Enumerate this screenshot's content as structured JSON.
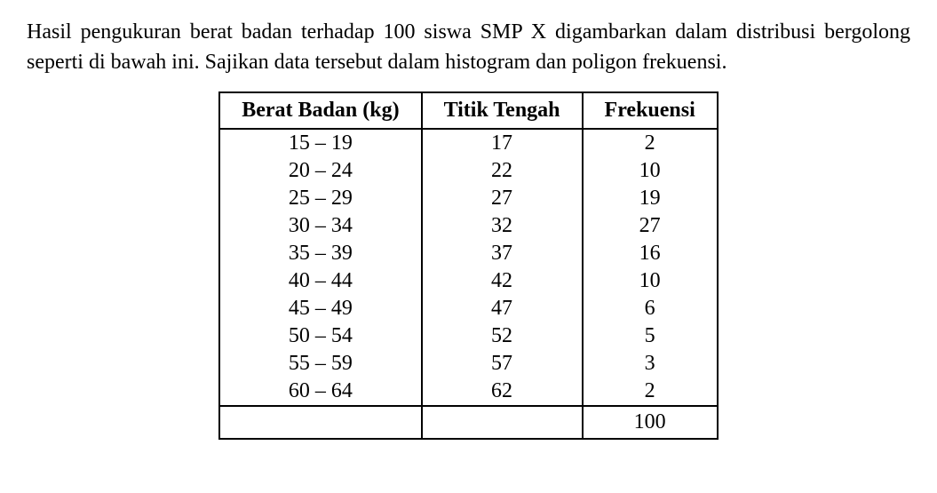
{
  "question": {
    "text": "Hasil pengukuran berat badan terhadap 100 siswa SMP X digambarkan dalam distribusi bergolong seperti di bawah ini. Sajikan data tersebut dalam histogram dan poligon frekuensi."
  },
  "table": {
    "headers": {
      "col1": "Berat Badan (kg)",
      "col2": "Titik Tengah",
      "col3": "Frekuensi"
    },
    "rows": [
      {
        "range": "15 – 19",
        "midpoint": "17",
        "frequency": "2"
      },
      {
        "range": "20 – 24",
        "midpoint": "22",
        "frequency": "10"
      },
      {
        "range": "25 – 29",
        "midpoint": "27",
        "frequency": "19"
      },
      {
        "range": "30 – 34",
        "midpoint": "32",
        "frequency": "27"
      },
      {
        "range": "35 – 39",
        "midpoint": "37",
        "frequency": "16"
      },
      {
        "range": "40 – 44",
        "midpoint": "42",
        "frequency": "10"
      },
      {
        "range": "45 – 49",
        "midpoint": "47",
        "frequency": "6"
      },
      {
        "range": "50 – 54",
        "midpoint": "52",
        "frequency": "5"
      },
      {
        "range": "55 – 59",
        "midpoint": "57",
        "frequency": "3"
      },
      {
        "range": "60 – 64",
        "midpoint": "62",
        "frequency": "2"
      }
    ],
    "total": "100"
  },
  "styling": {
    "font_family": "Times New Roman",
    "body_fontsize": 24,
    "text_color": "#000000",
    "background_color": "#ffffff",
    "border_color": "#000000",
    "border_width": 2
  }
}
